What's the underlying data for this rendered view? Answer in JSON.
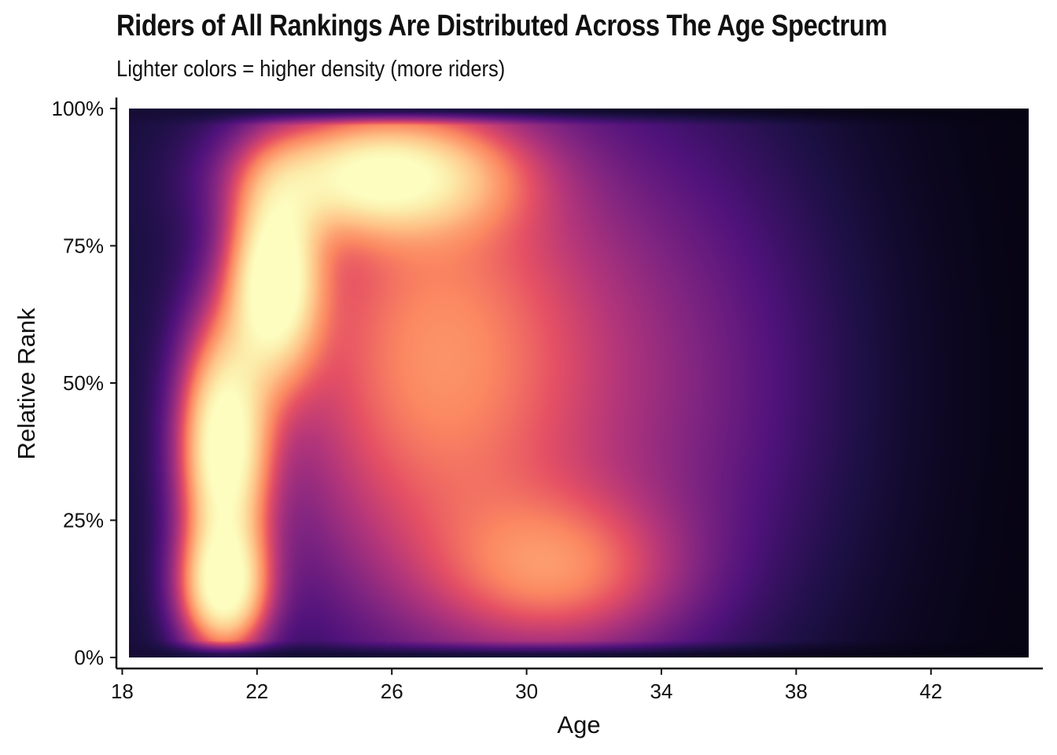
{
  "chart_data": {
    "type": "heatmap",
    "title": "Riders of All Rankings Are Distributed Across The Age Spectrum",
    "subtitle": "Lighter colors = higher density (more riders)",
    "xlabel": "Age",
    "ylabel": "Relative Rank",
    "x_ticks": [
      18,
      22,
      26,
      30,
      34,
      38,
      42
    ],
    "x_tick_labels": [
      "18",
      "22",
      "26",
      "30",
      "34",
      "38",
      "42"
    ],
    "y_ticks": [
      0,
      0.25,
      0.5,
      0.75,
      1.0
    ],
    "y_tick_labels": [
      "0%",
      "25%",
      "50%",
      "75%",
      "100%"
    ],
    "xlim": [
      18.2,
      44.9
    ],
    "ylim": [
      0,
      1
    ],
    "colormap": "magma",
    "density_peaks": [
      {
        "age": 21.0,
        "rank": 0.38,
        "weight": 1.0,
        "sx": 0.9,
        "sy": 0.15
      },
      {
        "age": 22.5,
        "rank": 0.69,
        "weight": 0.95,
        "sx": 0.9,
        "sy": 0.12
      },
      {
        "age": 21.0,
        "rank": 0.12,
        "weight": 0.85,
        "sx": 0.9,
        "sy": 0.08
      },
      {
        "age": 25.5,
        "rank": 0.88,
        "weight": 0.75,
        "sx": 2.5,
        "sy": 0.07
      },
      {
        "age": 27.0,
        "rank": 0.55,
        "weight": 0.55,
        "sx": 3.5,
        "sy": 0.35
      },
      {
        "age": 31.0,
        "rank": 0.15,
        "weight": 0.35,
        "sx": 2.5,
        "sy": 0.1
      },
      {
        "age": 34.0,
        "rank": 0.5,
        "weight": 0.25,
        "sx": 4.0,
        "sy": 0.4
      }
    ],
    "grid": false,
    "legend": "none"
  }
}
